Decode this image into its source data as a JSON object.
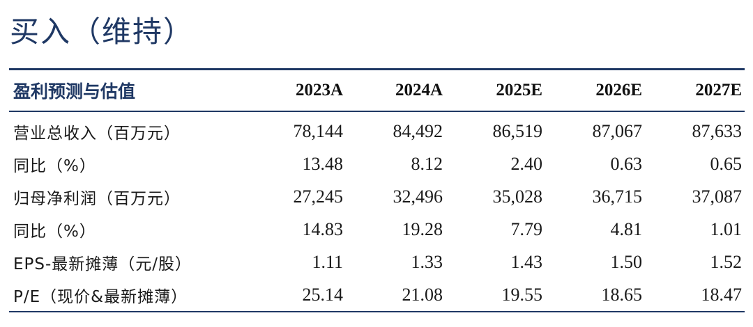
{
  "rating": "买入（维持）",
  "table": {
    "header_label": "盈利预测与估值",
    "years": [
      "2023A",
      "2024A",
      "2025E",
      "2026E",
      "2027E"
    ],
    "rows": [
      {
        "label": "营业总收入（百万元）",
        "values": [
          "78,144",
          "84,492",
          "86,519",
          "87,067",
          "87,633"
        ]
      },
      {
        "label": "同比（%）",
        "values": [
          "13.48",
          "8.12",
          "2.40",
          "0.63",
          "0.65"
        ]
      },
      {
        "label": "归母净利润（百万元）",
        "values": [
          "27,245",
          "32,496",
          "35,028",
          "36,715",
          "37,087"
        ]
      },
      {
        "label": "同比（%）",
        "values": [
          "14.83",
          "19.28",
          "7.79",
          "4.81",
          "1.01"
        ]
      },
      {
        "label": "EPS-最新摊薄（元/股）",
        "values": [
          "1.11",
          "1.33",
          "1.43",
          "1.50",
          "1.52"
        ]
      },
      {
        "label": "P/E（现价&最新摊薄）",
        "values": [
          "25.14",
          "21.08",
          "19.55",
          "18.65",
          "18.47"
        ]
      }
    ]
  }
}
